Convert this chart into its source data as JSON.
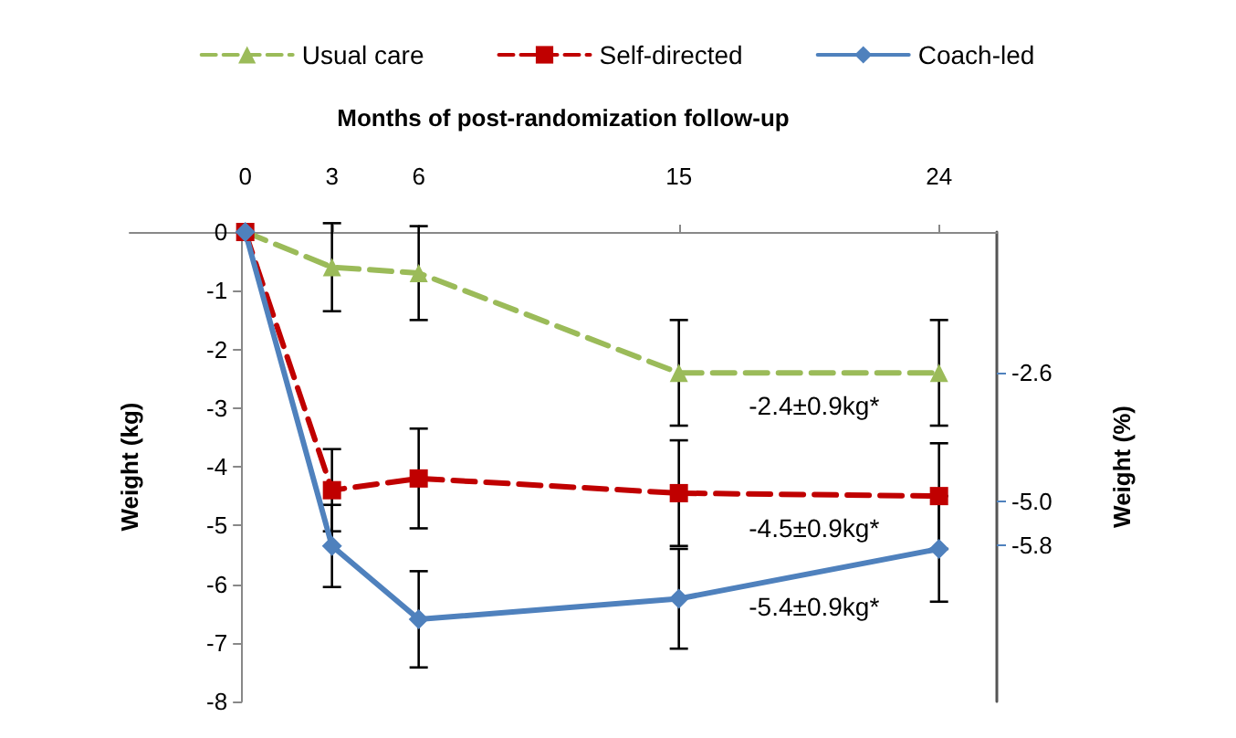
{
  "chart_data": {
    "type": "line",
    "xlabel": "Months of post-randomization follow-up",
    "ylabel": "Weight (kg)",
    "y2label": "Weight (%)",
    "x": [
      0,
      3,
      6,
      15,
      24
    ],
    "xlim": [
      -4,
      26
    ],
    "xticks": [
      0,
      3,
      6,
      15,
      24
    ],
    "ylim": [
      -8,
      0
    ],
    "yticks": [
      0,
      -1,
      -2,
      -3,
      -4,
      -5,
      -6,
      -7,
      -8
    ],
    "y2lim": [
      -8.7,
      0
    ],
    "y2ticks": [
      {
        "value": -2.6,
        "label": "-2.6"
      },
      {
        "value": -5,
        "label": "-5.0"
      },
      {
        "value": -5.8,
        "label": "-5.8"
      }
    ],
    "grid": false,
    "legend": "top",
    "series": [
      {
        "name": "Usual care",
        "color": "#9bbb59",
        "marker": "triangle",
        "line_style": "dashed",
        "values": [
          0,
          -0.6,
          -0.7,
          -2.4,
          -2.4
        ],
        "errors": [
          null,
          0.75,
          0.8,
          0.9,
          0.9
        ]
      },
      {
        "name": "Self-directed",
        "color": "#c00000",
        "marker": "square",
        "line_style": "dashed",
        "values": [
          0,
          -4.4,
          -4.2,
          -4.45,
          -4.5
        ],
        "errors": [
          null,
          0.7,
          0.85,
          0.9,
          0.9
        ]
      },
      {
        "name": "Coach-led",
        "color": "#4f81bd",
        "marker": "diamond",
        "line_style": "solid",
        "values": [
          0,
          -5.35,
          -6.6,
          -6.25,
          -5.4
        ],
        "errors": [
          null,
          0.7,
          0.82,
          0.85,
          0.9
        ]
      }
    ],
    "annotations": [
      "-2.4±0.9kg*",
      "-4.5±0.9kg*",
      "-5.4±0.9kg*"
    ]
  }
}
